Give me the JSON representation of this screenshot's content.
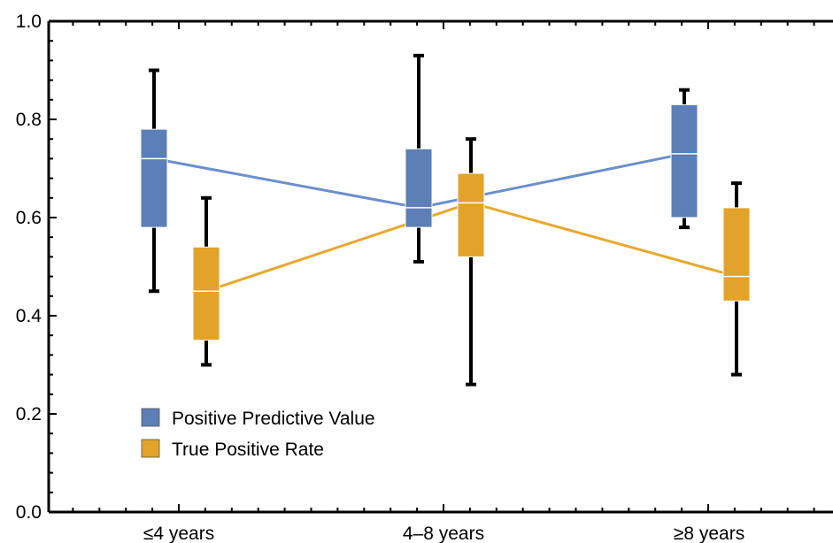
{
  "chart_data": {
    "type": "box",
    "categories": [
      "≤4 years",
      "4–8 years",
      "≥8 years"
    ],
    "ylim": [
      0.0,
      1.0
    ],
    "yticks": [
      "0.0",
      "0.2",
      "0.4",
      "0.6",
      "0.8",
      "1.0"
    ],
    "grid": false,
    "legend_position": "lower-left",
    "series": [
      {
        "name": "Positive Predictive Value",
        "color": "#5b7fb6",
        "line_color": "#6a8fcc",
        "boxes": [
          {
            "min": 0.45,
            "q1": 0.58,
            "median": 0.72,
            "q3": 0.78,
            "max": 0.9
          },
          {
            "min": 0.51,
            "q1": 0.58,
            "median": 0.62,
            "q3": 0.74,
            "max": 0.93
          },
          {
            "min": 0.58,
            "q1": 0.6,
            "median": 0.73,
            "q3": 0.83,
            "max": 0.86
          }
        ]
      },
      {
        "name": "True Positive Rate",
        "color": "#e3a22a",
        "line_color": "#e8a82e",
        "boxes": [
          {
            "min": 0.3,
            "q1": 0.35,
            "median": 0.45,
            "q3": 0.54,
            "max": 0.64
          },
          {
            "min": 0.26,
            "q1": 0.52,
            "median": 0.63,
            "q3": 0.69,
            "max": 0.76
          },
          {
            "min": 0.28,
            "q1": 0.43,
            "median": 0.48,
            "q3": 0.62,
            "max": 0.67
          }
        ]
      }
    ]
  }
}
